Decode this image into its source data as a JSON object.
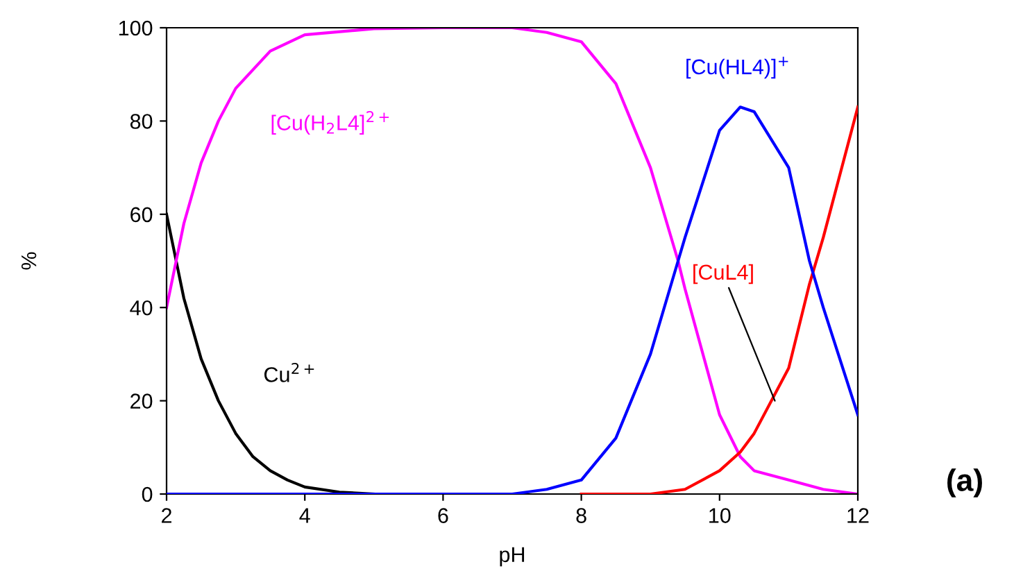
{
  "chart_data": {
    "type": "line",
    "xlabel": "pH",
    "ylabel": "%",
    "xlim": [
      2,
      12
    ],
    "ylim": [
      0,
      100
    ],
    "xticks": [
      2,
      4,
      6,
      8,
      10,
      12
    ],
    "yticks": [
      0,
      20,
      40,
      60,
      80,
      100
    ],
    "grid": false,
    "legend": false,
    "marker": "none",
    "line_style": "solid",
    "series": [
      {
        "name": "Cu$^{2+}$",
        "color": "#000000",
        "x": [
          2,
          2.25,
          2.5,
          2.75,
          3,
          3.25,
          3.5,
          3.75,
          4,
          4.5,
          5
        ],
        "values": [
          60,
          42,
          29,
          20,
          13,
          8,
          5,
          3,
          1.5,
          0.4,
          0
        ]
      },
      {
        "name": "[Cu(H$_{2}$L4]$^{2+}$",
        "color": "#ff00ff",
        "x": [
          2,
          2.25,
          2.5,
          2.75,
          3,
          3.5,
          4,
          5,
          6,
          7,
          7.5,
          8,
          8.5,
          9,
          9.4,
          9.5,
          10,
          10.3,
          10.5,
          11,
          11.5,
          12
        ],
        "values": [
          40,
          58,
          71,
          80,
          87,
          95,
          98.5,
          99.8,
          100,
          100,
          99,
          97,
          88,
          70,
          50,
          44,
          17,
          8,
          5,
          3,
          1,
          0
        ]
      },
      {
        "name": "[Cu(HL4)]$^{+}$",
        "color": "#0000ff",
        "x": [
          2,
          4,
          6,
          7,
          7.5,
          8,
          8.5,
          9,
          9.4,
          9.5,
          10,
          10.3,
          10.5,
          11,
          11.3,
          11.5,
          12
        ],
        "values": [
          0,
          0,
          0,
          0,
          1,
          3,
          12,
          30,
          50,
          55,
          78,
          83,
          82,
          70,
          50,
          40,
          17
        ]
      },
      {
        "color": "#ff0000",
        "x": [
          8,
          9,
          9.5,
          10,
          10.3,
          10.5,
          11,
          11.3,
          11.5,
          12
        ],
        "values": [
          0,
          0,
          1,
          5,
          9,
          13,
          27,
          45,
          55,
          83
        ]
      }
    ],
    "annotations": [
      {
        "text": "[CuL4]",
        "x": 10.8,
        "y": 20
      },
      "(a)"
    ]
  }
}
